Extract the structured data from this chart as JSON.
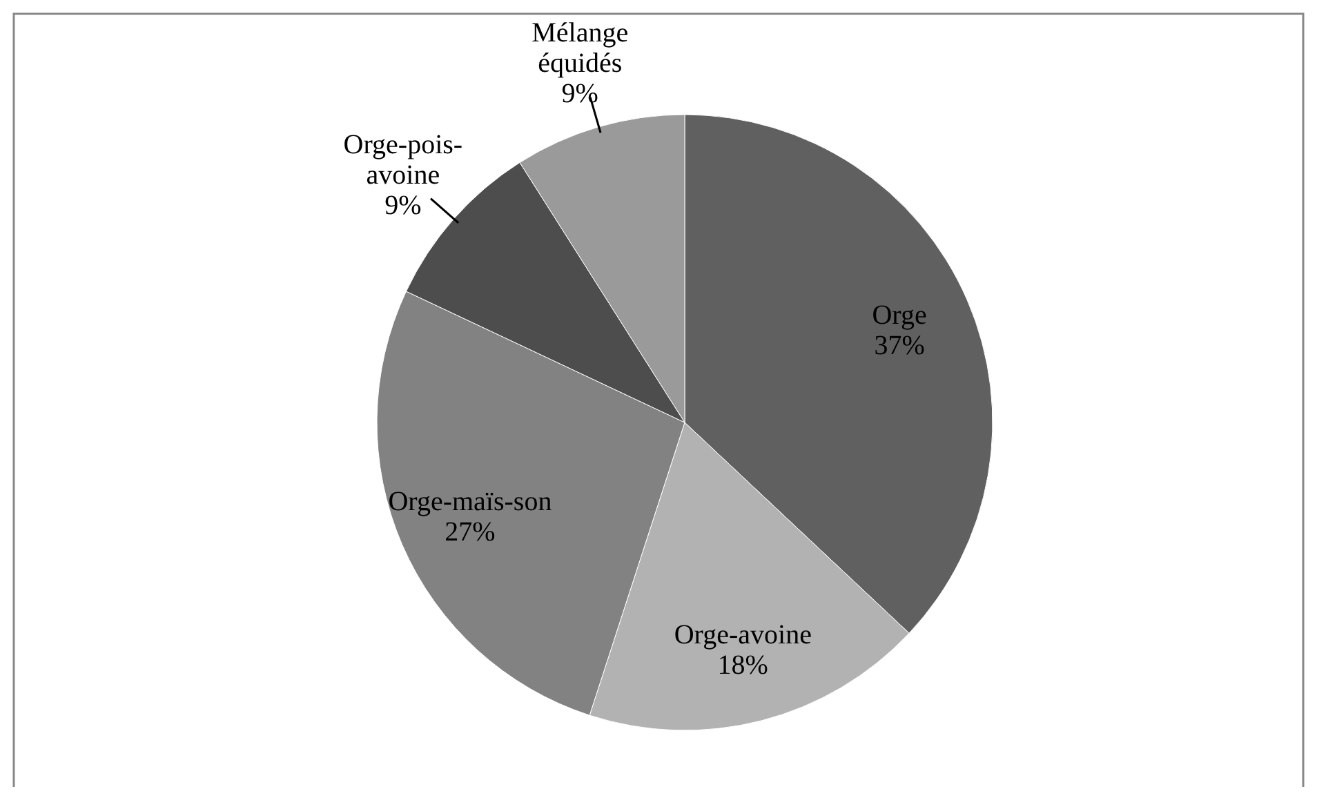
{
  "chart_data": {
    "type": "pie",
    "categories": [
      "Orge",
      "Orge-avoine",
      "Orge-maïs-son",
      "Orge-pois-avoine",
      "Mélange équidés"
    ],
    "values": [
      37,
      18,
      27,
      9,
      9
    ],
    "value_labels": [
      "37%",
      "18%",
      "27%",
      "9%",
      "9%"
    ],
    "colors": [
      "#606060",
      "#b2b2b2",
      "#828282",
      "#4d4d4d",
      "#9a9a9a"
    ]
  }
}
